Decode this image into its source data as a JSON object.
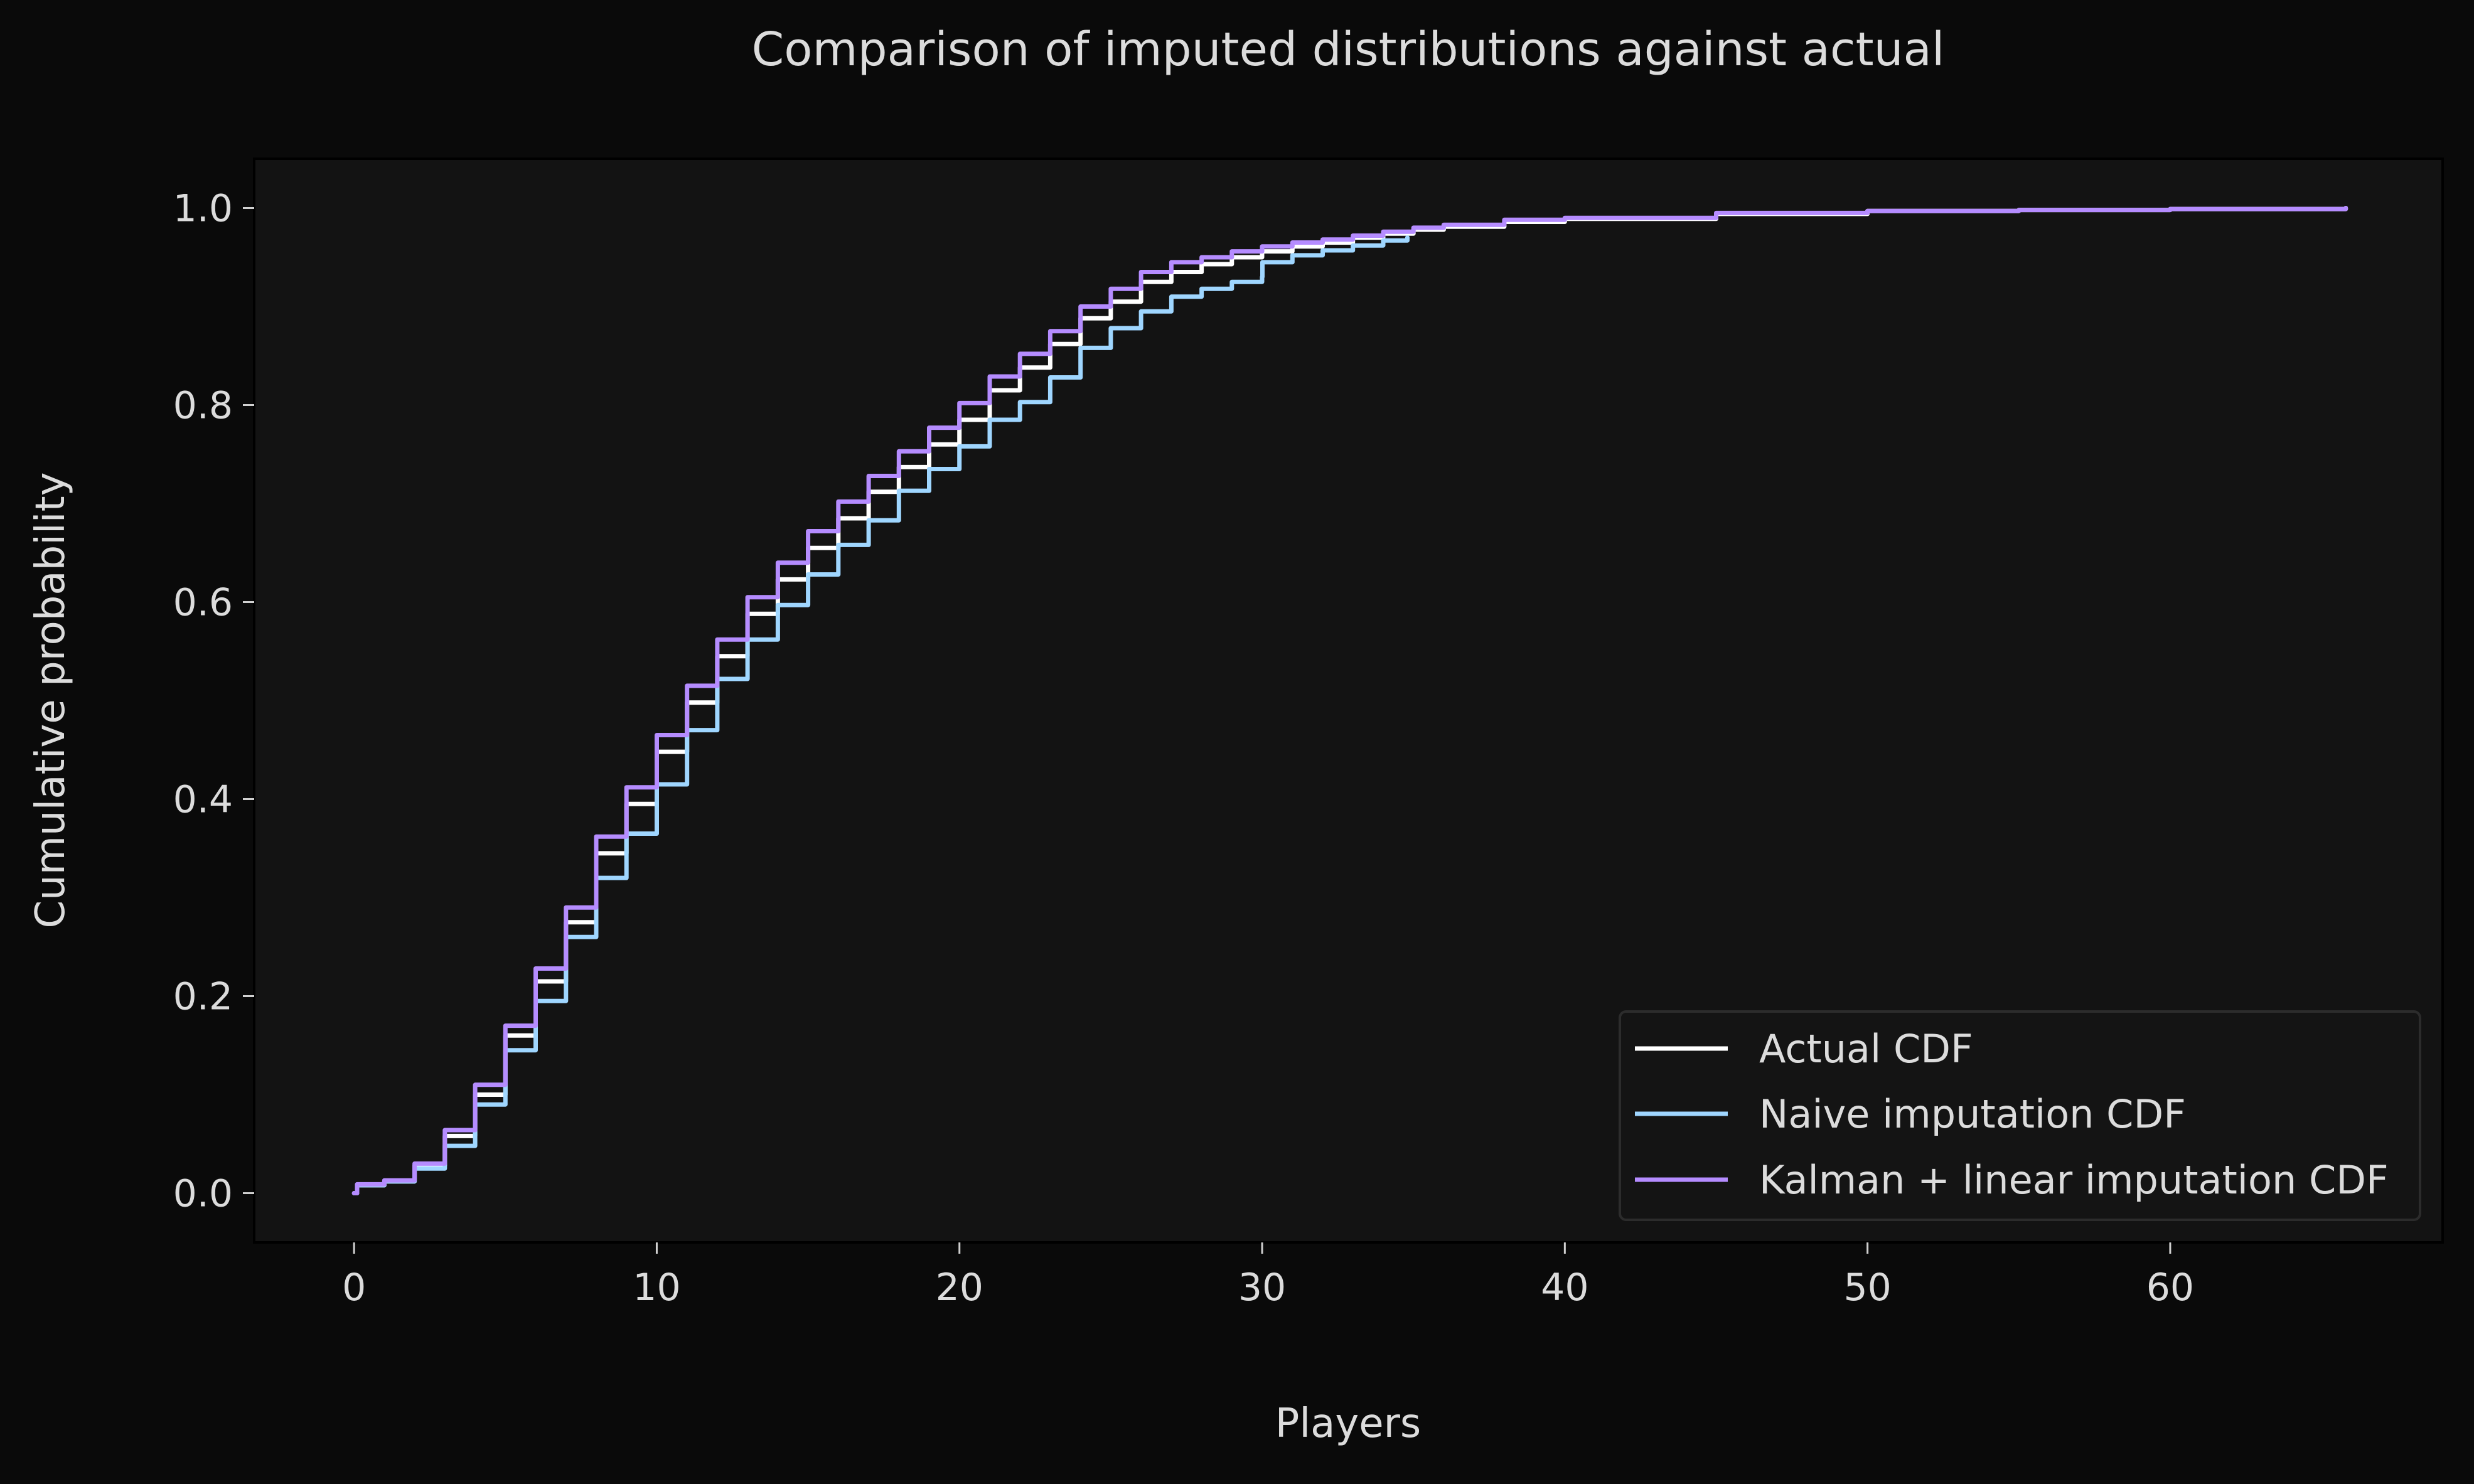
{
  "colors": {
    "page_bg": "#0a0a0a",
    "plot_bg": "#131313",
    "axis": "#000000",
    "text": "#dcdcdc",
    "actual": "#ffffff",
    "naive": "#9fd6ff",
    "kalman": "#b58cff",
    "legend_bg": "#141414",
    "legend_border": "#2c2c2c"
  },
  "chart_data": {
    "type": "line",
    "title": "Comparison of imputed distributions against actual",
    "xlabel": "Players",
    "ylabel": "Cumulative probability",
    "xlim": [
      -3.3,
      69
    ],
    "ylim": [
      -0.05,
      1.05
    ],
    "xticks": [
      0,
      10,
      20,
      30,
      40,
      50,
      60
    ],
    "yticks": [
      0.0,
      0.2,
      0.4,
      0.6,
      0.8,
      1.0
    ],
    "xtick_labels": [
      "0",
      "10",
      "20",
      "30",
      "40",
      "50",
      "60"
    ],
    "ytick_labels": [
      "0.0",
      "0.2",
      "0.4",
      "0.6",
      "0.8",
      "1.0"
    ],
    "grid": false,
    "legend_position": "bottom-right",
    "series": [
      {
        "name": "Actual CDF",
        "color": "#ffffff",
        "x": [
          0,
          0.1,
          1,
          2,
          3,
          4,
          5,
          6,
          7,
          8,
          9,
          10,
          11,
          12,
          13,
          14,
          15,
          16,
          17,
          18,
          19,
          20,
          21,
          22,
          23,
          24,
          25,
          26,
          27,
          28,
          29,
          30,
          31,
          32,
          33,
          34,
          35,
          36,
          38,
          40,
          45,
          50,
          55,
          60,
          65.8
        ],
        "y": [
          0.0,
          0.008,
          0.012,
          0.028,
          0.058,
          0.1,
          0.16,
          0.215,
          0.275,
          0.345,
          0.395,
          0.448,
          0.498,
          0.545,
          0.588,
          0.623,
          0.655,
          0.685,
          0.712,
          0.737,
          0.76,
          0.785,
          0.815,
          0.838,
          0.862,
          0.888,
          0.905,
          0.925,
          0.935,
          0.943,
          0.95,
          0.956,
          0.961,
          0.965,
          0.97,
          0.974,
          0.978,
          0.981,
          0.986,
          0.989,
          0.994,
          0.997,
          0.998,
          0.999,
          1.0
        ]
      },
      {
        "name": "Naive imputation CDF",
        "color": "#9fd6ff",
        "x": [
          0,
          0.1,
          1,
          2,
          3,
          4,
          5,
          6,
          7,
          8,
          9,
          10,
          11,
          12,
          13,
          14,
          15,
          16,
          17,
          18,
          19,
          20,
          21,
          22,
          23,
          24,
          25,
          26,
          27,
          28,
          29,
          30,
          30.01,
          31,
          32,
          33,
          34,
          34.8
        ],
        "y": [
          0.0,
          0.008,
          0.012,
          0.025,
          0.048,
          0.09,
          0.145,
          0.195,
          0.26,
          0.32,
          0.365,
          0.415,
          0.47,
          0.522,
          0.562,
          0.597,
          0.628,
          0.658,
          0.683,
          0.713,
          0.735,
          0.758,
          0.785,
          0.803,
          0.828,
          0.858,
          0.878,
          0.895,
          0.91,
          0.918,
          0.925,
          0.93,
          0.945,
          0.952,
          0.957,
          0.962,
          0.967,
          0.97
        ]
      },
      {
        "name": "Kalman + linear imputation CDF",
        "color": "#b58cff",
        "x": [
          0,
          0.1,
          1,
          2,
          3,
          4,
          5,
          6,
          7,
          8,
          9,
          10,
          11,
          12,
          13,
          14,
          15,
          16,
          17,
          18,
          19,
          20,
          21,
          22,
          23,
          24,
          25,
          26,
          27,
          28,
          29,
          30,
          31,
          32,
          33,
          34,
          35,
          36,
          38,
          40,
          45,
          50,
          55,
          60,
          65.8
        ],
        "y": [
          0.0,
          0.009,
          0.013,
          0.03,
          0.064,
          0.11,
          0.17,
          0.228,
          0.29,
          0.362,
          0.412,
          0.465,
          0.515,
          0.562,
          0.605,
          0.64,
          0.672,
          0.702,
          0.728,
          0.753,
          0.777,
          0.802,
          0.829,
          0.852,
          0.875,
          0.9,
          0.918,
          0.935,
          0.945,
          0.95,
          0.956,
          0.961,
          0.965,
          0.968,
          0.972,
          0.976,
          0.98,
          0.983,
          0.988,
          0.99,
          0.995,
          0.997,
          0.998,
          0.999,
          1.0
        ]
      }
    ]
  }
}
